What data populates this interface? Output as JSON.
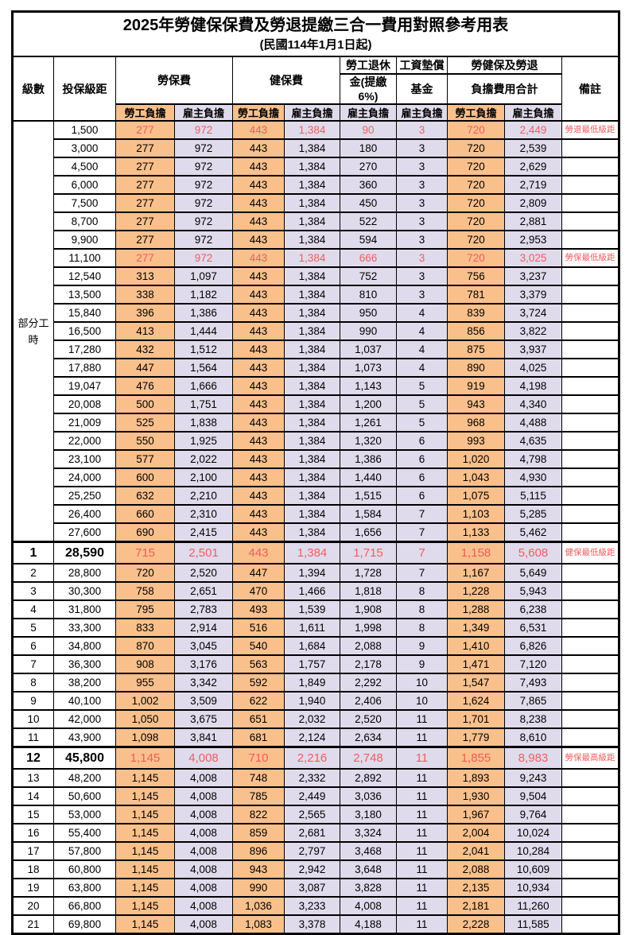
{
  "title": "2025年勞健保保費及勞退提繳三合一費用對照參考用表",
  "subtitle": "(民國114年1月1日起)",
  "colors": {
    "labor_bg": "#FAC08C",
    "employer_bg": "#E0DBEC",
    "highlight_red": "#F25C5C"
  },
  "header": {
    "level": "級數",
    "bracket": "投保級距",
    "labor_insurance": "勞保費",
    "health_insurance": "健保費",
    "pension_line1": "勞工退休",
    "pension_line2": "金(提繳6%)",
    "wage_fund_line1": "工資墊償",
    "wage_fund_line2": "基金",
    "total_line1": "勞健保及勞退",
    "total_line2": "負擔費用合計",
    "remark": "備註",
    "employee_share": "勞工負擔",
    "employer_share": "雇主負擔"
  },
  "part_time_label": "部分工時",
  "part_time_rowspan": 23,
  "rows": [
    {
      "level": "",
      "cells": [
        "1,500",
        "277",
        "972",
        "443",
        "1,384",
        "90",
        "3",
        "720",
        "2,449"
      ],
      "remark": "勞退最低級距",
      "style": "red"
    },
    {
      "level": "",
      "cells": [
        "3,000",
        "277",
        "972",
        "443",
        "1,384",
        "180",
        "3",
        "720",
        "2,539"
      ],
      "remark": "",
      "style": ""
    },
    {
      "level": "",
      "cells": [
        "4,500",
        "277",
        "972",
        "443",
        "1,384",
        "270",
        "3",
        "720",
        "2,629"
      ],
      "remark": "",
      "style": ""
    },
    {
      "level": "",
      "cells": [
        "6,000",
        "277",
        "972",
        "443",
        "1,384",
        "360",
        "3",
        "720",
        "2,719"
      ],
      "remark": "",
      "style": ""
    },
    {
      "level": "",
      "cells": [
        "7,500",
        "277",
        "972",
        "443",
        "1,384",
        "450",
        "3",
        "720",
        "2,809"
      ],
      "remark": "",
      "style": ""
    },
    {
      "level": "",
      "cells": [
        "8,700",
        "277",
        "972",
        "443",
        "1,384",
        "522",
        "3",
        "720",
        "2,881"
      ],
      "remark": "",
      "style": ""
    },
    {
      "level": "",
      "cells": [
        "9,900",
        "277",
        "972",
        "443",
        "1,384",
        "594",
        "3",
        "720",
        "2,953"
      ],
      "remark": "",
      "style": ""
    },
    {
      "level": "",
      "cells": [
        "11,100",
        "277",
        "972",
        "443",
        "1,384",
        "666",
        "3",
        "720",
        "3,025"
      ],
      "remark": "勞保最低級距",
      "style": "red"
    },
    {
      "level": "",
      "cells": [
        "12,540",
        "313",
        "1,097",
        "443",
        "1,384",
        "752",
        "3",
        "756",
        "3,237"
      ],
      "remark": "",
      "style": ""
    },
    {
      "level": "",
      "cells": [
        "13,500",
        "338",
        "1,182",
        "443",
        "1,384",
        "810",
        "3",
        "781",
        "3,379"
      ],
      "remark": "",
      "style": ""
    },
    {
      "level": "",
      "cells": [
        "15,840",
        "396",
        "1,386",
        "443",
        "1,384",
        "950",
        "4",
        "839",
        "3,724"
      ],
      "remark": "",
      "style": ""
    },
    {
      "level": "",
      "cells": [
        "16,500",
        "413",
        "1,444",
        "443",
        "1,384",
        "990",
        "4",
        "856",
        "3,822"
      ],
      "remark": "",
      "style": ""
    },
    {
      "level": "",
      "cells": [
        "17,280",
        "432",
        "1,512",
        "443",
        "1,384",
        "1,037",
        "4",
        "875",
        "3,937"
      ],
      "remark": "",
      "style": ""
    },
    {
      "level": "",
      "cells": [
        "17,880",
        "447",
        "1,564",
        "443",
        "1,384",
        "1,073",
        "4",
        "890",
        "4,025"
      ],
      "remark": "",
      "style": ""
    },
    {
      "level": "",
      "cells": [
        "19,047",
        "476",
        "1,666",
        "443",
        "1,384",
        "1,143",
        "5",
        "919",
        "4,198"
      ],
      "remark": "",
      "style": ""
    },
    {
      "level": "",
      "cells": [
        "20,008",
        "500",
        "1,751",
        "443",
        "1,384",
        "1,200",
        "5",
        "943",
        "4,340"
      ],
      "remark": "",
      "style": ""
    },
    {
      "level": "",
      "cells": [
        "21,009",
        "525",
        "1,838",
        "443",
        "1,384",
        "1,261",
        "5",
        "968",
        "4,488"
      ],
      "remark": "",
      "style": ""
    },
    {
      "level": "",
      "cells": [
        "22,000",
        "550",
        "1,925",
        "443",
        "1,384",
        "1,320",
        "6",
        "993",
        "4,635"
      ],
      "remark": "",
      "style": ""
    },
    {
      "level": "",
      "cells": [
        "23,100",
        "577",
        "2,022",
        "443",
        "1,384",
        "1,386",
        "6",
        "1,020",
        "4,798"
      ],
      "remark": "",
      "style": ""
    },
    {
      "level": "",
      "cells": [
        "24,000",
        "600",
        "2,100",
        "443",
        "1,384",
        "1,440",
        "6",
        "1,043",
        "4,930"
      ],
      "remark": "",
      "style": ""
    },
    {
      "level": "",
      "cells": [
        "25,250",
        "632",
        "2,210",
        "443",
        "1,384",
        "1,515",
        "6",
        "1,075",
        "5,115"
      ],
      "remark": "",
      "style": ""
    },
    {
      "level": "",
      "cells": [
        "26,400",
        "660",
        "2,310",
        "443",
        "1,384",
        "1,584",
        "7",
        "1,103",
        "5,285"
      ],
      "remark": "",
      "style": ""
    },
    {
      "level": "",
      "cells": [
        "27,600",
        "690",
        "2,415",
        "443",
        "1,384",
        "1,656",
        "7",
        "1,133",
        "5,462"
      ],
      "remark": "",
      "style": ""
    },
    {
      "level": "1",
      "cells": [
        "28,590",
        "715",
        "2,501",
        "443",
        "1,384",
        "1,715",
        "7",
        "1,158",
        "5,608"
      ],
      "remark": "健保最低級距",
      "style": "major"
    },
    {
      "level": "2",
      "cells": [
        "28,800",
        "720",
        "2,520",
        "447",
        "1,394",
        "1,728",
        "7",
        "1,167",
        "5,649"
      ],
      "remark": "",
      "style": ""
    },
    {
      "level": "3",
      "cells": [
        "30,300",
        "758",
        "2,651",
        "470",
        "1,466",
        "1,818",
        "8",
        "1,228",
        "5,943"
      ],
      "remark": "",
      "style": ""
    },
    {
      "level": "4",
      "cells": [
        "31,800",
        "795",
        "2,783",
        "493",
        "1,539",
        "1,908",
        "8",
        "1,288",
        "6,238"
      ],
      "remark": "",
      "style": ""
    },
    {
      "level": "5",
      "cells": [
        "33,300",
        "833",
        "2,914",
        "516",
        "1,611",
        "1,998",
        "8",
        "1,349",
        "6,531"
      ],
      "remark": "",
      "style": ""
    },
    {
      "level": "6",
      "cells": [
        "34,800",
        "870",
        "3,045",
        "540",
        "1,684",
        "2,088",
        "9",
        "1,410",
        "6,826"
      ],
      "remark": "",
      "style": ""
    },
    {
      "level": "7",
      "cells": [
        "36,300",
        "908",
        "3,176",
        "563",
        "1,757",
        "2,178",
        "9",
        "1,471",
        "7,120"
      ],
      "remark": "",
      "style": ""
    },
    {
      "level": "8",
      "cells": [
        "38,200",
        "955",
        "3,342",
        "592",
        "1,849",
        "2,292",
        "10",
        "1,547",
        "7,493"
      ],
      "remark": "",
      "style": ""
    },
    {
      "level": "9",
      "cells": [
        "40,100",
        "1,002",
        "3,509",
        "622",
        "1,940",
        "2,406",
        "10",
        "1,624",
        "7,865"
      ],
      "remark": "",
      "style": ""
    },
    {
      "level": "10",
      "cells": [
        "42,000",
        "1,050",
        "3,675",
        "651",
        "2,032",
        "2,520",
        "11",
        "1,701",
        "8,238"
      ],
      "remark": "",
      "style": ""
    },
    {
      "level": "11",
      "cells": [
        "43,900",
        "1,098",
        "3,841",
        "681",
        "2,124",
        "2,634",
        "11",
        "1,779",
        "8,610"
      ],
      "remark": "",
      "style": ""
    },
    {
      "level": "12",
      "cells": [
        "45,800",
        "1,145",
        "4,008",
        "710",
        "2,216",
        "2,748",
        "11",
        "1,855",
        "8,983"
      ],
      "remark": "勞保最高級距",
      "style": "major"
    },
    {
      "level": "13",
      "cells": [
        "48,200",
        "1,145",
        "4,008",
        "748",
        "2,332",
        "2,892",
        "11",
        "1,893",
        "9,243"
      ],
      "remark": "",
      "style": ""
    },
    {
      "level": "14",
      "cells": [
        "50,600",
        "1,145",
        "4,008",
        "785",
        "2,449",
        "3,036",
        "11",
        "1,930",
        "9,504"
      ],
      "remark": "",
      "style": ""
    },
    {
      "level": "15",
      "cells": [
        "53,000",
        "1,145",
        "4,008",
        "822",
        "2,565",
        "3,180",
        "11",
        "1,967",
        "9,764"
      ],
      "remark": "",
      "style": ""
    },
    {
      "level": "16",
      "cells": [
        "55,400",
        "1,145",
        "4,008",
        "859",
        "2,681",
        "3,324",
        "11",
        "2,004",
        "10,024"
      ],
      "remark": "",
      "style": ""
    },
    {
      "level": "17",
      "cells": [
        "57,800",
        "1,145",
        "4,008",
        "896",
        "2,797",
        "3,468",
        "11",
        "2,041",
        "10,284"
      ],
      "remark": "",
      "style": ""
    },
    {
      "level": "18",
      "cells": [
        "60,800",
        "1,145",
        "4,008",
        "943",
        "2,942",
        "3,648",
        "11",
        "2,088",
        "10,609"
      ],
      "remark": "",
      "style": ""
    },
    {
      "level": "19",
      "cells": [
        "63,800",
        "1,145",
        "4,008",
        "990",
        "3,087",
        "3,828",
        "11",
        "2,135",
        "10,934"
      ],
      "remark": "",
      "style": ""
    },
    {
      "level": "20",
      "cells": [
        "66,800",
        "1,145",
        "4,008",
        "1,036",
        "3,233",
        "4,008",
        "11",
        "2,181",
        "11,260"
      ],
      "remark": "",
      "style": ""
    },
    {
      "level": "21",
      "cells": [
        "69,800",
        "1,145",
        "4,008",
        "1,083",
        "3,378",
        "4,188",
        "11",
        "2,228",
        "11,585"
      ],
      "remark": "",
      "style": ""
    }
  ]
}
